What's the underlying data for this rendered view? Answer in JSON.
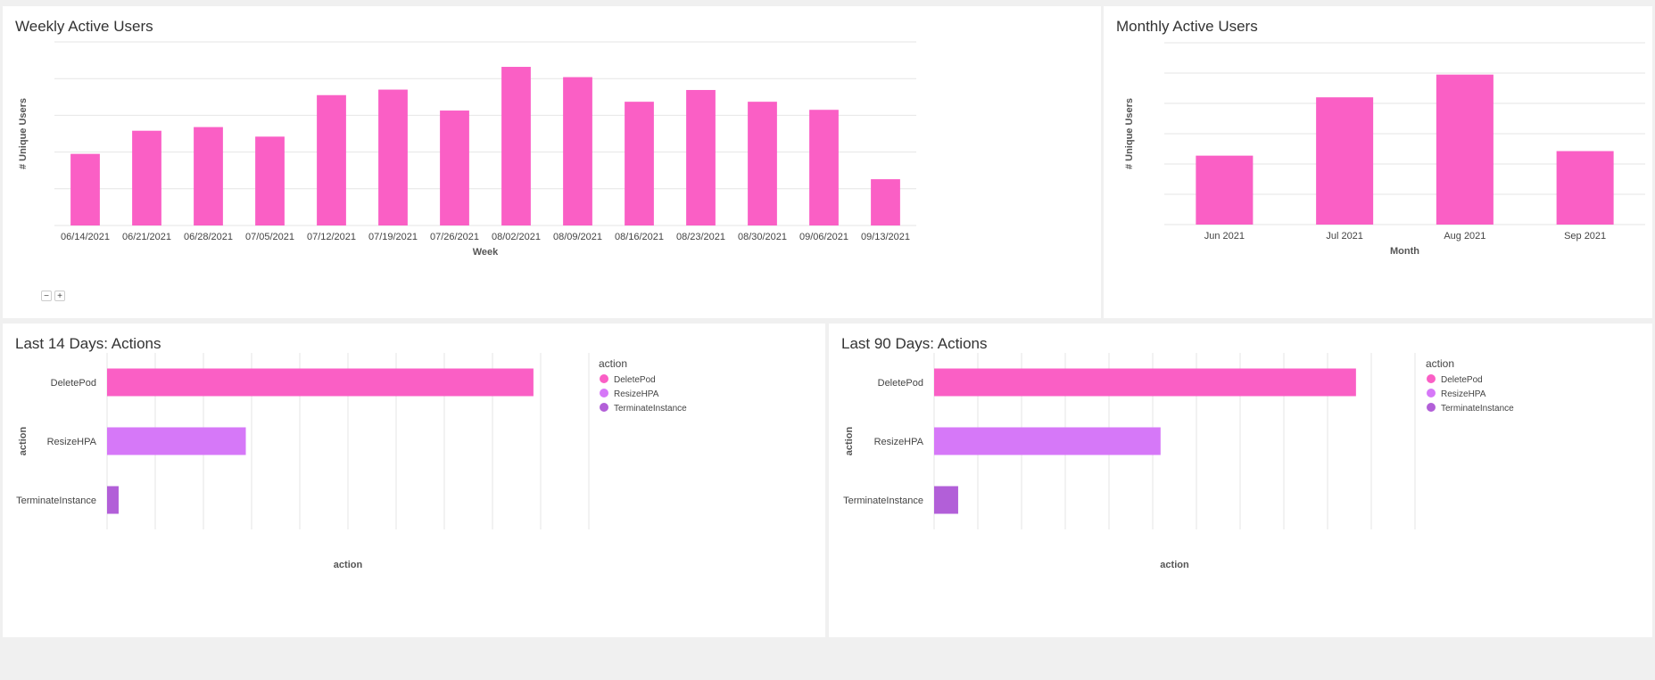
{
  "colors": {
    "bar_pink": "#fa5fc5",
    "action_colors": [
      "#fa5fc5",
      "#d678f8",
      "#b25fd8"
    ],
    "grid": "#e6e6e6"
  },
  "zoom": {
    "minus": "−",
    "plus": "+"
  },
  "chart_data": [
    {
      "id": "wau",
      "type": "bar",
      "title": "Weekly Active Users",
      "xlabel": "Week",
      "ylabel": "# Unique Users",
      "categories": [
        "06/14/2021",
        "06/21/2021",
        "06/28/2021",
        "07/05/2021",
        "07/12/2021",
        "07/19/2021",
        "07/26/2021",
        "08/02/2021",
        "08/09/2021",
        "08/16/2021",
        "08/23/2021",
        "08/30/2021",
        "09/06/2021",
        "09/13/2021"
      ],
      "values": [
        19.5,
        25.8,
        26.8,
        24.2,
        35.5,
        37.0,
        31.3,
        43.2,
        40.4,
        33.7,
        36.9,
        33.7,
        31.5,
        12.6
      ],
      "ylim": [
        0,
        50
      ],
      "gridlines": [
        0,
        10,
        20,
        30,
        40,
        50
      ],
      "y_tick_labels_visible": false,
      "grid": true
    },
    {
      "id": "mau",
      "type": "bar",
      "title": "Monthly Active Users",
      "xlabel": "Month",
      "ylabel": "# Unique Users",
      "categories": [
        "Jun 2021",
        "Jul 2021",
        "Aug 2021",
        "Sep 2021"
      ],
      "values": [
        45.5,
        84.0,
        99.0,
        48.5
      ],
      "ylim": [
        0,
        120
      ],
      "gridlines": [
        0,
        20,
        40,
        60,
        80,
        100,
        120
      ],
      "y_tick_labels_visible": false,
      "grid": true
    },
    {
      "id": "last14",
      "type": "bar",
      "orientation": "horizontal",
      "title": "Last 14 Days: Actions",
      "xlabel": "action",
      "ylabel": "action",
      "categories": [
        "DeletePod",
        "ResizeHPA",
        "TerminateInstance"
      ],
      "values": [
        88.5,
        28.8,
        2.4
      ],
      "xlim": [
        0,
        100
      ],
      "x_gridlines": [
        0,
        10,
        20,
        30,
        40,
        50,
        60,
        70,
        80,
        90,
        100
      ],
      "x_tick_labels_visible": false,
      "legend": {
        "title": "action",
        "entries": [
          "DeletePod",
          "ResizeHPA",
          "TerminateInstance"
        ],
        "position": "right"
      },
      "grid": true
    },
    {
      "id": "last90",
      "type": "bar",
      "orientation": "horizontal",
      "title": "Last 90 Days: Actions",
      "xlabel": "action",
      "ylabel": "action",
      "categories": [
        "DeletePod",
        "ResizeHPA",
        "TerminateInstance"
      ],
      "values": [
        96.5,
        51.8,
        5.5
      ],
      "xlim": [
        0,
        110
      ],
      "x_gridlines": [
        0,
        10,
        20,
        30,
        40,
        50,
        60,
        70,
        80,
        90,
        100,
        110
      ],
      "x_tick_labels_visible": false,
      "legend": {
        "title": "action",
        "entries": [
          "DeletePod",
          "ResizeHPA",
          "TerminateInstance"
        ],
        "position": "right"
      },
      "grid": true
    }
  ]
}
